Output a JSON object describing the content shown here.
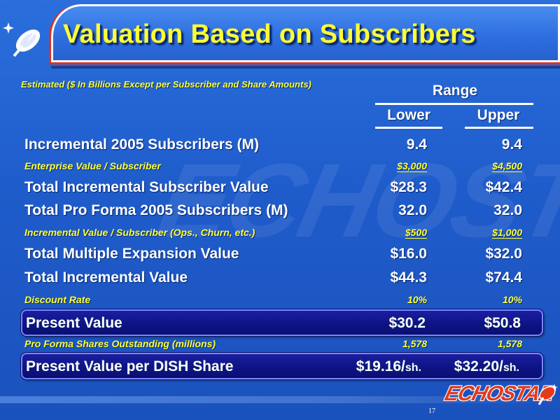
{
  "header": {
    "title": "Valuation Based on Subscribers",
    "note": "Estimated ($ In Billions Except per Subscriber and Share Amounts)"
  },
  "columns": {
    "group": "Range",
    "lower": "Lower",
    "upper": "Upper"
  },
  "rows": [
    {
      "label": "Incremental 2005 Subscribers (M)",
      "lower": "9.4",
      "upper": "9.4"
    },
    {
      "label": "Enterprise Value / Subscriber",
      "lower": "$3,000",
      "upper": "$4,500"
    },
    {
      "label": "Total Incremental Subscriber Value",
      "lower": "$28.3",
      "upper": "$42.4"
    },
    {
      "label": "Total Pro Forma 2005 Subscribers (M)",
      "lower": "32.0",
      "upper": "32.0"
    },
    {
      "label": "Incremental Value / Subscriber (Ops., Churn, etc.)",
      "lower": "$500",
      "upper": "$1,000"
    },
    {
      "label": "Total Multiple Expansion Value",
      "lower": "$16.0",
      "upper": "$32.0"
    },
    {
      "label": "Total Incremental Value",
      "lower": "$44.3",
      "upper": "$74.4"
    },
    {
      "label": "Discount Rate",
      "lower": "10%",
      "upper": "10%"
    },
    {
      "label": "Present Value",
      "lower": "$30.2",
      "upper": "$50.8"
    },
    {
      "label": "Pro Forma Shares Outstanding (millions)",
      "lower": "1,578",
      "upper": "1,578"
    },
    {
      "label": "Present Value per DISH Share",
      "lower": "$19.16/",
      "upper": "$32.20/",
      "unit": "sh."
    }
  ],
  "watermark": "ECHOSTAR",
  "footer": {
    "logo": "ECHOSTAR",
    "page_number": "17"
  },
  "colors": {
    "background": "#1f5ccb",
    "title": "#ffff33",
    "accent_red": "#e03020",
    "highlight_box": "#0d1383"
  }
}
